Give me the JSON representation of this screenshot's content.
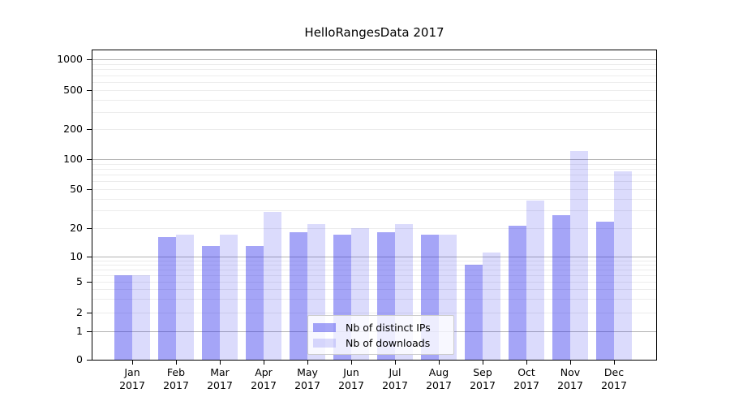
{
  "chart_data": {
    "type": "bar",
    "title": "HelloRangesData 2017",
    "categories": [
      "Jan",
      "Feb",
      "Mar",
      "Apr",
      "May",
      "Jun",
      "Jul",
      "Aug",
      "Sep",
      "Oct",
      "Nov",
      "Dec"
    ],
    "category_year_line": "2017",
    "y_scale": "symlog",
    "y_ticks": [
      0,
      1,
      2,
      5,
      10,
      20,
      50,
      100,
      200,
      500,
      1000
    ],
    "grid": "horizontal decade majors with faint log minors",
    "legend_position": "lower center",
    "series": [
      {
        "name": "Nb of distinct IPs",
        "color": "#2828eb",
        "opacity": 0.42,
        "solid_color": "#a5a5f7",
        "values": [
          6,
          16,
          13,
          13,
          18,
          17,
          18,
          17,
          8,
          21,
          27,
          23
        ]
      },
      {
        "name": "Nb of downloads",
        "color": "#2828eb",
        "opacity": 0.17,
        "solid_color": "#dadafc",
        "values": [
          6,
          17,
          17,
          29,
          22,
          20,
          22,
          17,
          11,
          38,
          120,
          75
        ]
      }
    ]
  },
  "colors": {
    "background": "#ffffff",
    "axis": "#000000",
    "major_gridline": "#b2b2b2",
    "minor_gridline": "#ececec",
    "legend_border": "#cccccc",
    "text": "#000000"
  }
}
